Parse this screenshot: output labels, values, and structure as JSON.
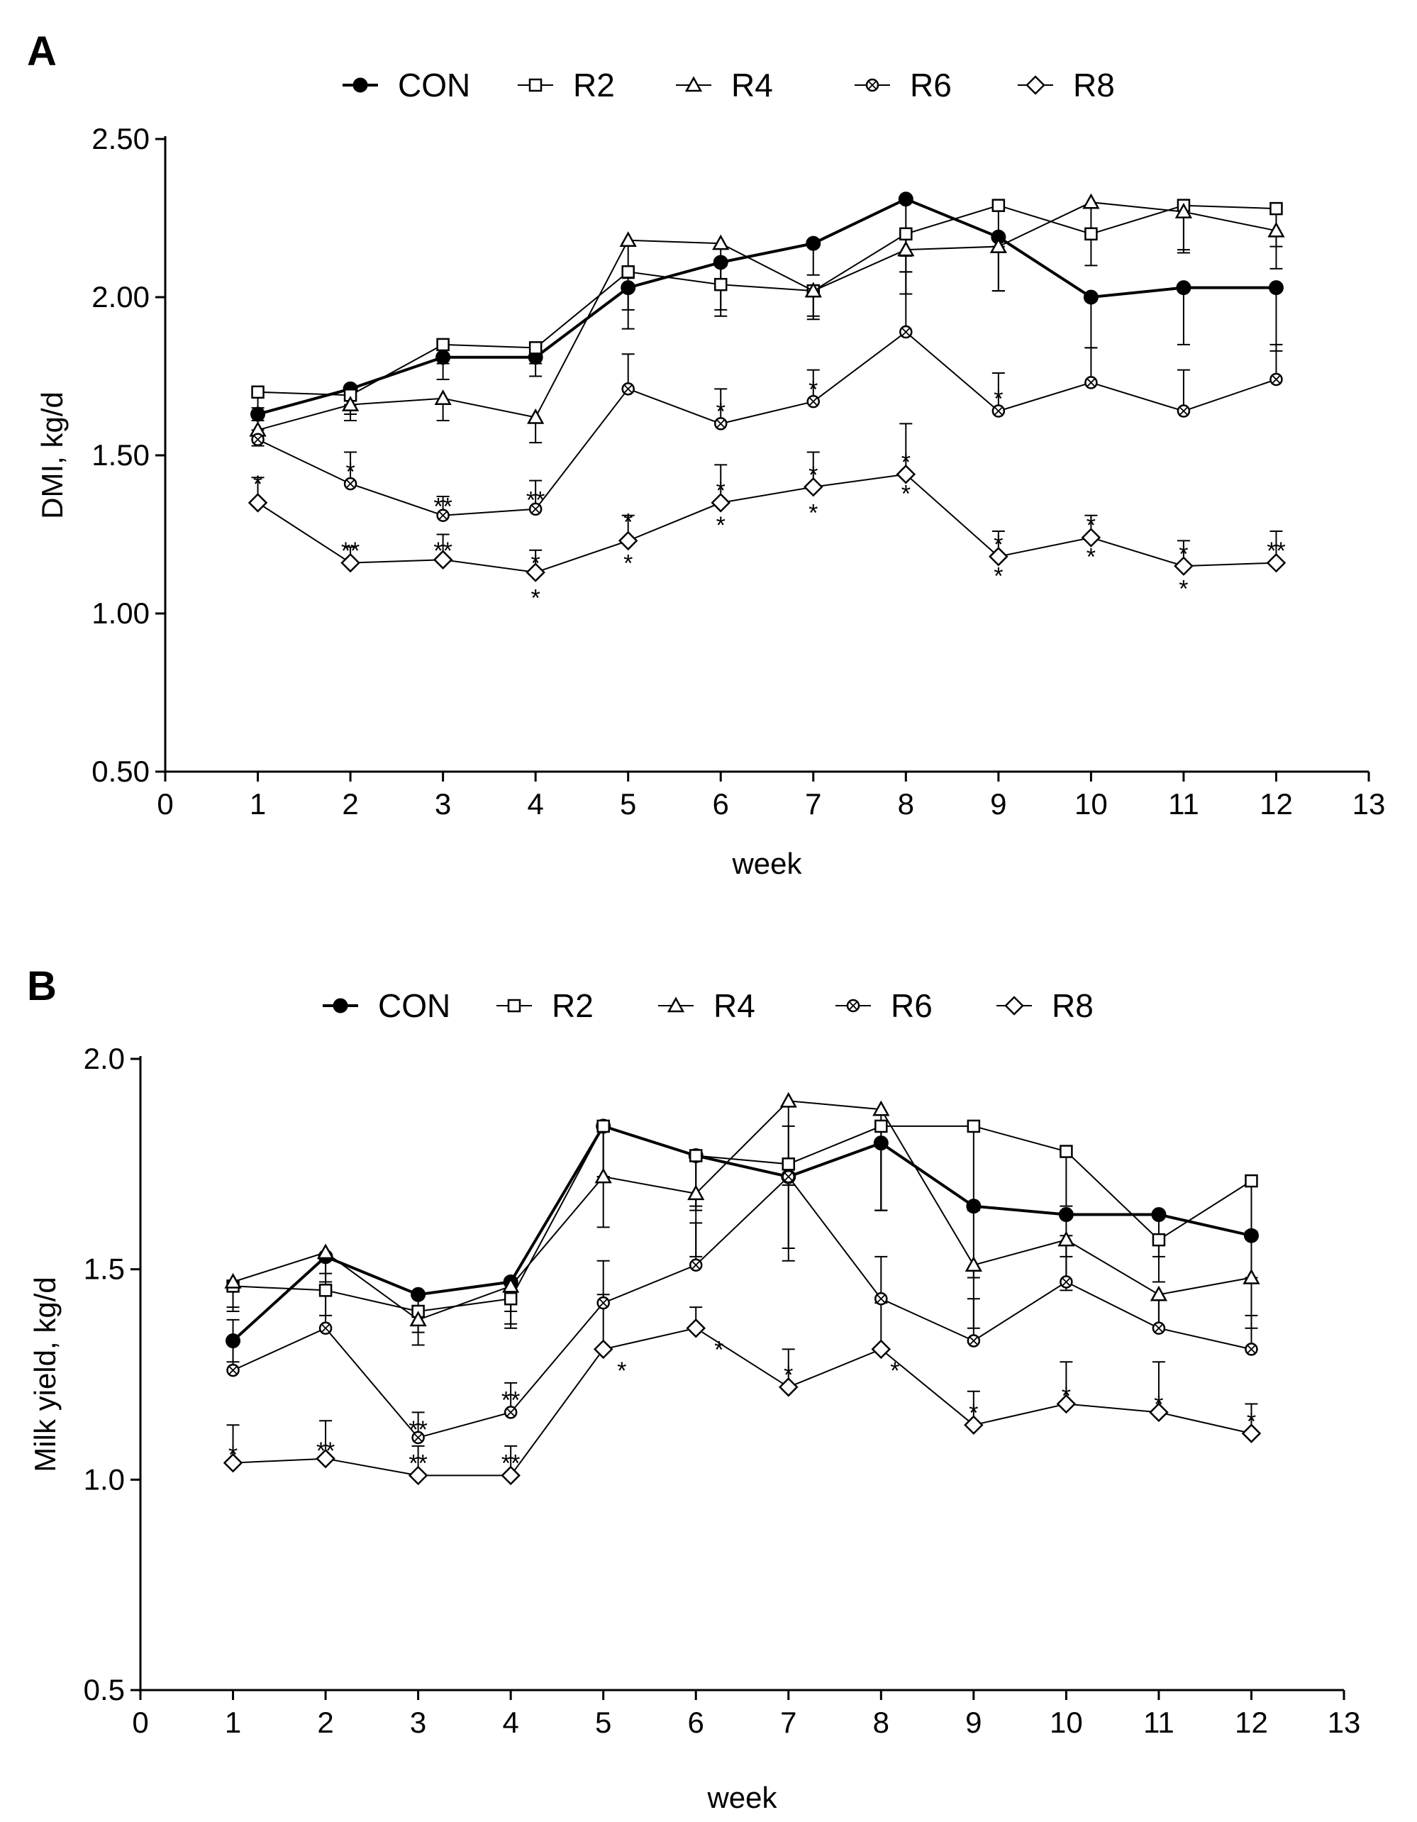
{
  "chart_data": [
    {
      "type": "line",
      "panel_label": "A",
      "xlabel": "week",
      "ylabel": "DMI, kg/d",
      "xlim": [
        0,
        13
      ],
      "ylim": [
        0.5,
        2.5
      ],
      "x_ticks": [
        "0",
        "1",
        "2",
        "3",
        "4",
        "5",
        "6",
        "7",
        "8",
        "9",
        "10",
        "11",
        "12",
        "13"
      ],
      "y_ticks": [
        "0.50",
        "1.00",
        "1.50",
        "2.00",
        "2.50"
      ],
      "grid": false,
      "legend_position": "top",
      "x": [
        1,
        2,
        3,
        4,
        5,
        6,
        7,
        8,
        9,
        10,
        11,
        12
      ],
      "series": [
        {
          "name": "CON",
          "marker": "filled-circle",
          "values": [
            1.63,
            1.71,
            1.81,
            1.81,
            2.03,
            2.11,
            2.17,
            2.31,
            2.19,
            2.0,
            2.03,
            2.03
          ],
          "error": [
            0.05,
            0.05,
            0.07,
            0.06,
            0.13,
            0.15,
            0.1,
            0.18,
            0.17,
            0.16,
            0.18,
            0.2
          ]
        },
        {
          "name": "R2",
          "marker": "open-square",
          "values": [
            1.7,
            1.69,
            1.85,
            1.84,
            2.08,
            2.04,
            2.02,
            2.2,
            2.29,
            2.2,
            2.29,
            2.28
          ],
          "error": [
            0.05,
            0.06,
            0.06,
            0.05,
            0.12,
            0.1,
            0.09,
            0.12,
            0.13,
            0.1,
            0.14,
            0.12
          ]
        },
        {
          "name": "R4",
          "marker": "open-triangle",
          "values": [
            1.58,
            1.66,
            1.68,
            1.62,
            2.18,
            2.17,
            2.02,
            2.15,
            2.16,
            2.3,
            2.27,
            2.21
          ],
          "error": [
            0.05,
            0.05,
            0.07,
            0.08,
            0.12,
            0.13,
            0.08,
            0.14,
            0.14,
            0.1,
            0.13,
            0.12
          ]
        },
        {
          "name": "R6",
          "marker": "crossed-circle",
          "values": [
            1.55,
            1.41,
            1.31,
            1.33,
            1.71,
            1.6,
            1.67,
            1.89,
            1.64,
            1.73,
            1.64,
            1.74
          ],
          "error": [
            0.06,
            0.1,
            0.06,
            0.09,
            0.11,
            0.11,
            0.1,
            0.19,
            0.12,
            0.11,
            0.13,
            0.11
          ]
        },
        {
          "name": "R8",
          "marker": "open-diamond",
          "values": [
            1.35,
            1.16,
            1.17,
            1.13,
            1.23,
            1.35,
            1.4,
            1.44,
            1.18,
            1.24,
            1.15,
            1.16
          ],
          "error": [
            0.08,
            0.05,
            0.08,
            0.07,
            0.08,
            0.12,
            0.11,
            0.16,
            0.08,
            0.07,
            0.08,
            0.1
          ]
        }
      ],
      "annotations": [
        {
          "text": "*",
          "x": 1,
          "y": 1.41
        },
        {
          "text": "*",
          "x": 2,
          "y": 1.45
        },
        {
          "text": "**",
          "x": 2,
          "y": 1.2
        },
        {
          "text": "**",
          "x": 3,
          "y": 1.34
        },
        {
          "text": "**",
          "x": 3,
          "y": 1.2
        },
        {
          "text": "**",
          "x": 4,
          "y": 1.36
        },
        {
          "text": "*",
          "x": 4,
          "y": 1.16
        },
        {
          "text": "*",
          "x": 4,
          "y": 1.05
        },
        {
          "text": "*",
          "x": 5,
          "y": 1.29
        },
        {
          "text": "*",
          "x": 5,
          "y": 1.16
        },
        {
          "text": "*",
          "x": 6,
          "y": 1.64
        },
        {
          "text": "*",
          "x": 6,
          "y": 1.39
        },
        {
          "text": "*",
          "x": 6,
          "y": 1.28
        },
        {
          "text": "*",
          "x": 7,
          "y": 1.71
        },
        {
          "text": "*",
          "x": 7,
          "y": 1.44
        },
        {
          "text": "*",
          "x": 7,
          "y": 1.32
        },
        {
          "text": "*",
          "x": 8,
          "y": 1.48
        },
        {
          "text": "*",
          "x": 8,
          "y": 1.38
        },
        {
          "text": "*",
          "x": 9,
          "y": 1.68
        },
        {
          "text": "*",
          "x": 9,
          "y": 1.22
        },
        {
          "text": "*",
          "x": 9,
          "y": 1.12
        },
        {
          "text": "*",
          "x": 10,
          "y": 1.28
        },
        {
          "text": "*",
          "x": 10,
          "y": 1.18
        },
        {
          "text": "*",
          "x": 11,
          "y": 1.19
        },
        {
          "text": "*",
          "x": 11,
          "y": 1.08
        },
        {
          "text": "**",
          "x": 12,
          "y": 1.2
        }
      ]
    },
    {
      "type": "line",
      "panel_label": "B",
      "xlabel": "week",
      "ylabel": "Milk yield, kg/d",
      "xlim": [
        0,
        13
      ],
      "ylim": [
        0.5,
        2.0
      ],
      "x_ticks": [
        "0",
        "1",
        "2",
        "3",
        "4",
        "5",
        "6",
        "7",
        "8",
        "9",
        "10",
        "11",
        "12",
        "13"
      ],
      "y_ticks": [
        "0.5",
        "1.0",
        "1.5",
        "2.0"
      ],
      "grid": false,
      "legend_position": "top",
      "x": [
        1,
        2,
        3,
        4,
        5,
        6,
        7,
        8,
        9,
        10,
        11,
        12
      ],
      "series": [
        {
          "name": "CON",
          "marker": "filled-circle",
          "values": [
            1.33,
            1.53,
            1.44,
            1.47,
            1.84,
            1.77,
            1.72,
            1.8,
            1.65,
            1.63,
            1.63,
            1.58
          ],
          "error": [
            0.05,
            0.06,
            0.05,
            0.1,
            0.12,
            0.13,
            0.2,
            0.16,
            0.17,
            0.1,
            0.1,
            0.1
          ]
        },
        {
          "name": "R2",
          "marker": "open-square",
          "values": [
            1.46,
            1.45,
            1.4,
            1.43,
            1.84,
            1.77,
            1.75,
            1.84,
            1.84,
            1.78,
            1.57,
            1.71
          ],
          "error": [
            0.06,
            0.06,
            0.05,
            0.07,
            0.12,
            0.12,
            0.2,
            0.2,
            0.2,
            0.13,
            0.1,
            0.12
          ]
        },
        {
          "name": "R4",
          "marker": "open-triangle",
          "values": [
            1.47,
            1.54,
            1.38,
            1.46,
            1.72,
            1.68,
            1.9,
            1.88,
            1.51,
            1.57,
            1.44,
            1.48
          ],
          "error": [
            0.06,
            0.07,
            0.06,
            0.06,
            0.12,
            0.15,
            0.2,
            0.24,
            0.15,
            0.12,
            0.08,
            0.12
          ]
        },
        {
          "name": "R6",
          "marker": "crossed-circle",
          "values": [
            1.26,
            1.36,
            1.1,
            1.16,
            1.42,
            1.51,
            1.72,
            1.43,
            1.33,
            1.47,
            1.36,
            1.31
          ],
          "error": [
            0.12,
            0.13,
            0.06,
            0.07,
            0.1,
            0.1,
            0.12,
            0.1,
            0.1,
            0.11,
            0.07,
            0.08
          ]
        },
        {
          "name": "R8",
          "marker": "open-diamond",
          "values": [
            1.04,
            1.05,
            1.01,
            1.01,
            1.31,
            1.36,
            1.22,
            1.31,
            1.13,
            1.18,
            1.16,
            1.11
          ],
          "error": [
            0.09,
            0.09,
            0.07,
            0.07,
            0.13,
            0.05,
            0.09,
            0.11,
            0.08,
            0.1,
            0.12,
            0.07
          ]
        }
      ],
      "annotations": [
        {
          "text": "*",
          "x": 1,
          "y": 1.06
        },
        {
          "text": "**",
          "x": 2,
          "y": 1.07
        },
        {
          "text": "**",
          "x": 3,
          "y": 1.12
        },
        {
          "text": "**",
          "x": 3,
          "y": 1.04
        },
        {
          "text": "**",
          "x": 4,
          "y": 1.19
        },
        {
          "text": "**",
          "x": 4,
          "y": 1.04
        },
        {
          "text": "*",
          "x": 5.2,
          "y": 1.26
        },
        {
          "text": "*",
          "x": 6.25,
          "y": 1.31
        },
        {
          "text": "*",
          "x": 7,
          "y": 1.25
        },
        {
          "text": "*",
          "x": 8.15,
          "y": 1.26
        },
        {
          "text": "*",
          "x": 9,
          "y": 1.16
        },
        {
          "text": "*",
          "x": 10,
          "y": 1.2
        },
        {
          "text": "*",
          "x": 11,
          "y": 1.18
        },
        {
          "text": "*",
          "x": 12,
          "y": 1.14
        }
      ]
    }
  ]
}
